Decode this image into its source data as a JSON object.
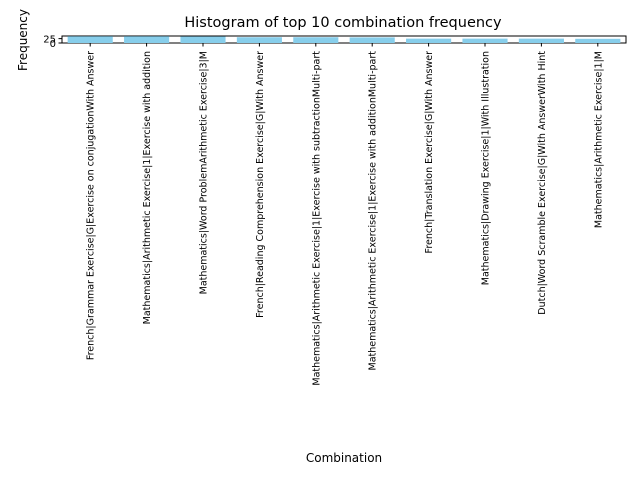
{
  "chart_data": {
    "type": "bar",
    "title": "Histogram of top 10 combination frequency",
    "xlabel": "Combination",
    "ylabel": "Frequency",
    "categories": [
      "French|Grammar Exercise|G|Exercise on conjugationWith Answer",
      "Mathematics|Arithmetic Exercise|1|Exercise with addition",
      "Mathematics|Word ProblemArithmetic Exercise|3|M",
      "French|Reading Comprehension Exercise|G|With Answer",
      "Mathematics|Arithmetic Exercise|1|Exercise with subtractionMulti-part",
      "Mathematics|Arithmetic Exercise|1|Exercise with additionMulti-part",
      "French|Translation Exercise|G|With Answer",
      "Mathematics|Drawing Exercise|1|With Illustration",
      "Dutch|Word Scramble Exercise|G|With AnswerWith Hint",
      "Mathematics|Arithmetic Exercise|1|M"
    ],
    "values": [
      38,
      38,
      37,
      33,
      33,
      32,
      25,
      25,
      25,
      24
    ],
    "ylim": [
      0,
      40
    ],
    "yticks": [
      0,
      25
    ],
    "ytick_labels": [
      "0",
      "25"
    ],
    "bar_color": "#87ceeb",
    "grid": false,
    "legend": "none"
  }
}
